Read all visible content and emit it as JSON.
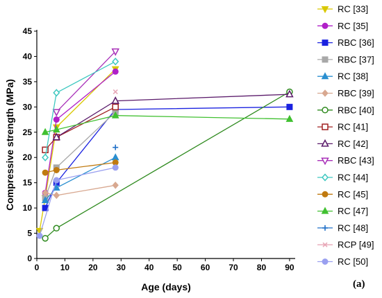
{
  "chart_data": {
    "type": "line",
    "xlabel": "Age (days)",
    "ylabel": "Compressive strength (MPa)",
    "xlim": [
      0,
      92
    ],
    "ylim": [
      0,
      45
    ],
    "x_ticks": [
      0,
      10,
      20,
      30,
      40,
      50,
      60,
      70,
      80,
      90
    ],
    "y_ticks": [
      0,
      5,
      10,
      15,
      20,
      25,
      30,
      35,
      40,
      45
    ],
    "panel_label": "(a)",
    "legend_position": "right",
    "series": [
      {
        "name": "RC [33]",
        "color": "#d9c800",
        "marker": "triangle-down-filled",
        "points": [
          [
            1,
            5.5
          ],
          [
            3,
            12
          ],
          [
            7,
            26
          ],
          [
            28,
            37.5
          ]
        ]
      },
      {
        "name": "RC [35]",
        "color": "#b020c8",
        "marker": "circle-filled",
        "points": [
          [
            3,
            13
          ],
          [
            7,
            27.5
          ],
          [
            28,
            37
          ]
        ]
      },
      {
        "name": "RBC [36]",
        "color": "#1a22e0",
        "marker": "square-filled",
        "points": [
          [
            3,
            10
          ],
          [
            7,
            15
          ],
          [
            28,
            29.5
          ],
          [
            90,
            30
          ]
        ]
      },
      {
        "name": "RBC [37]",
        "color": "#a8a8a8",
        "marker": "square-filled",
        "points": [
          [
            3,
            12
          ],
          [
            7,
            18
          ],
          [
            28,
            29
          ]
        ]
      },
      {
        "name": "RC [38]",
        "color": "#2a8fd0",
        "marker": "triangle-up-filled",
        "points": [
          [
            3,
            11.5
          ],
          [
            7,
            14
          ],
          [
            28,
            20
          ]
        ]
      },
      {
        "name": "RBC [39]",
        "color": "#d8a890",
        "marker": "diamond-filled",
        "points": [
          [
            3,
            13
          ],
          [
            7,
            12.5
          ],
          [
            28,
            14.5
          ]
        ]
      },
      {
        "name": "RBC [40]",
        "color": "#2e8a1e",
        "marker": "circle-open",
        "points": [
          [
            3,
            4
          ],
          [
            7,
            6
          ],
          [
            90,
            33
          ]
        ]
      },
      {
        "name": "RC [41]",
        "color": "#a02020",
        "marker": "square-open",
        "points": [
          [
            3,
            21.5
          ],
          [
            7,
            24
          ],
          [
            28,
            30
          ]
        ]
      },
      {
        "name": "RC [42]",
        "color": "#5a1a6a",
        "marker": "triangle-up-open",
        "points": [
          [
            7,
            24
          ],
          [
            28,
            31.2
          ],
          [
            90,
            32.5
          ]
        ]
      },
      {
        "name": "RBC [43]",
        "color": "#a830b8",
        "marker": "triangle-down-open",
        "points": [
          [
            7,
            29
          ],
          [
            28,
            41
          ]
        ]
      },
      {
        "name": "RC [44]",
        "color": "#3ec8c0",
        "marker": "diamond-open",
        "points": [
          [
            3,
            20
          ],
          [
            7,
            32.8
          ],
          [
            28,
            39
          ]
        ]
      },
      {
        "name": "RC [45]",
        "color": "#c07a10",
        "marker": "circle-filled",
        "points": [
          [
            3,
            17
          ],
          [
            7,
            17.5
          ],
          [
            28,
            19
          ]
        ]
      },
      {
        "name": "RC [47]",
        "color": "#40c030",
        "marker": "triangle-up-filled",
        "points": [
          [
            3,
            25
          ],
          [
            7,
            25.5
          ],
          [
            28,
            28.3
          ],
          [
            90,
            27.6
          ]
        ]
      },
      {
        "name": "RC [48]",
        "color": "#2070c8",
        "marker": "plus",
        "points": [
          [
            28,
            22
          ]
        ]
      },
      {
        "name": "RCP [49]",
        "color": "#e8a8b8",
        "marker": "cross",
        "points": [
          [
            28,
            33
          ]
        ]
      },
      {
        "name": "RC [50]",
        "color": "#9aa0f0",
        "marker": "circle-filled",
        "points": [
          [
            1,
            4.5
          ],
          [
            7,
            15.5
          ],
          [
            28,
            18
          ]
        ]
      }
    ]
  }
}
